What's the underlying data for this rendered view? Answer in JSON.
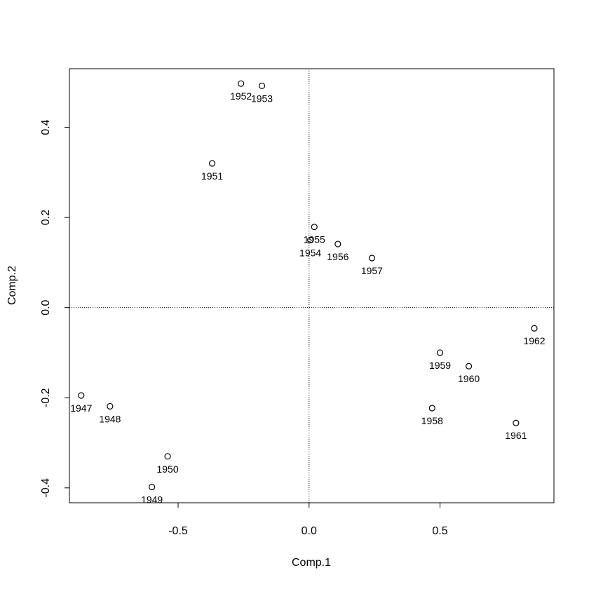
{
  "chart_data": {
    "type": "scatter",
    "title": "",
    "xlabel": "Comp.1",
    "ylabel": "Comp.2",
    "xlim": [
      -0.915,
      0.935
    ],
    "ylim": [
      -0.433,
      0.53
    ],
    "xticks": [
      -0.5,
      0.0,
      0.5
    ],
    "yticks": [
      -0.4,
      -0.2,
      0.0,
      0.2,
      0.4
    ],
    "xtick_labels": [
      "-0.5",
      "0.0",
      "0.5"
    ],
    "ytick_labels": [
      "-0.4",
      "-0.2",
      "0.0",
      "0.2",
      "0.4"
    ],
    "reference_lines": {
      "x": 0,
      "y": 0,
      "style": "dotted"
    },
    "grid": false,
    "points": [
      {
        "label": "1947",
        "x": -0.87,
        "y": -0.195
      },
      {
        "label": "1948",
        "x": -0.76,
        "y": -0.219
      },
      {
        "label": "1949",
        "x": -0.6,
        "y": -0.398
      },
      {
        "label": "1950",
        "x": -0.54,
        "y": -0.33
      },
      {
        "label": "1951",
        "x": -0.37,
        "y": 0.32
      },
      {
        "label": "1952",
        "x": -0.26,
        "y": 0.497
      },
      {
        "label": "1953",
        "x": -0.18,
        "y": 0.492
      },
      {
        "label": "1954",
        "x": 0.005,
        "y": 0.15
      },
      {
        "label": "1955",
        "x": 0.02,
        "y": 0.179
      },
      {
        "label": "1956",
        "x": 0.11,
        "y": 0.141
      },
      {
        "label": "1957",
        "x": 0.24,
        "y": 0.11
      },
      {
        "label": "1958",
        "x": 0.47,
        "y": -0.223
      },
      {
        "label": "1959",
        "x": 0.5,
        "y": -0.1
      },
      {
        "label": "1960",
        "x": 0.61,
        "y": -0.13
      },
      {
        "label": "1961",
        "x": 0.79,
        "y": -0.256
      },
      {
        "label": "1962",
        "x": 0.86,
        "y": -0.046
      }
    ]
  }
}
